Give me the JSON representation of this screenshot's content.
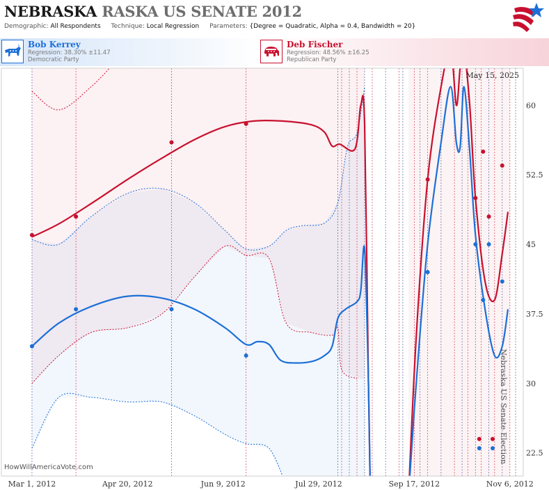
{
  "title": {
    "part1": "NEBRASKA",
    "part2": "RASKA US SENATE 2012"
  },
  "meta": {
    "demographic_label": "Demographic:",
    "demographic_value": "All Respondents",
    "technique_label": "Technique:",
    "technique_value": "Local Regression",
    "parameters_label": "Parameters:",
    "parameters_value": "{Degree = Quadratic, Alpha = 0.4, Bandwidth = 20}"
  },
  "legend": {
    "dem": {
      "name": "Bob Kerrey",
      "regression": "Regression: 38.30% ±11.47",
      "party": "Democratic Party",
      "color": "#1c6fd6",
      "icon": "donkey-icon"
    },
    "rep": {
      "name": "Deb Fischer",
      "regression": "Regression: 48.56% ±16.25",
      "party": "Republican Party",
      "color": "#c8102e",
      "icon": "elephant-icon"
    }
  },
  "date_label": "May 15, 2025",
  "side_label": "Nebraska US Senate Election",
  "credit": "HowWillAmericaVote.com",
  "chart_data": {
    "type": "line",
    "x_tick_labels": [
      "Mar 1, 2012",
      "Apr 20, 2012",
      "Jun 9, 2012",
      "Jul 29, 2012",
      "Sep 17, 2012",
      "Nov 6, 2012"
    ],
    "x_ticks": [
      "2012-03-01",
      "2012-04-20",
      "2012-06-09",
      "2012-07-29",
      "2012-09-17",
      "2012-11-06"
    ],
    "y_ticks": [
      22.5,
      30,
      37.5,
      45,
      52.5,
      60
    ],
    "y_tick_labels": [
      "22.5",
      "30",
      "37.5",
      "45",
      "52.5",
      "60"
    ],
    "ylim": [
      20,
      64
    ],
    "xlim": [
      "2012-02-14",
      "2012-11-13"
    ],
    "poll_dates": [
      "2012-03-01",
      "2012-03-24",
      "2012-05-13",
      "2012-06-21",
      "2012-08-08",
      "2012-08-10",
      "2012-08-14",
      "2012-08-18",
      "2012-08-22",
      "2012-08-26",
      "2012-09-02",
      "2012-09-09",
      "2012-09-11",
      "2012-09-17",
      "2012-09-20",
      "2012-09-24",
      "2012-10-01",
      "2012-10-08",
      "2012-10-12",
      "2012-10-15",
      "2012-10-19",
      "2012-10-22",
      "2012-10-26",
      "2012-10-29",
      "2012-11-02",
      "2012-11-06",
      "2012-11-09"
    ],
    "series": [
      {
        "name": "Bob Kerrey",
        "color": "#1c6fd6",
        "points": [
          {
            "x": "2012-03-01",
            "y": 34
          },
          {
            "x": "2012-03-24",
            "y": 38
          },
          {
            "x": "2012-05-13",
            "y": 38
          },
          {
            "x": "2012-06-21",
            "y": 33
          },
          {
            "x": "2012-09-24",
            "y": 42
          },
          {
            "x": "2012-10-19",
            "y": 45
          },
          {
            "x": "2012-10-23",
            "y": 39
          },
          {
            "x": "2012-10-26",
            "y": 45
          },
          {
            "x": "2012-11-02",
            "y": 41
          },
          {
            "x": "2012-10-21",
            "y": 23
          },
          {
            "x": "2012-10-28",
            "y": 23
          }
        ],
        "fit": [
          {
            "x": "2012-03-01",
            "y": 34
          },
          {
            "x": "2012-03-15",
            "y": 36.5
          },
          {
            "x": "2012-04-01",
            "y": 38.3
          },
          {
            "x": "2012-04-20",
            "y": 39.4
          },
          {
            "x": "2012-05-08",
            "y": 39.2
          },
          {
            "x": "2012-05-25",
            "y": 38
          },
          {
            "x": "2012-06-10",
            "y": 36
          },
          {
            "x": "2012-06-21",
            "y": 34.2
          },
          {
            "x": "2012-06-27",
            "y": 34.5
          },
          {
            "x": "2012-07-03",
            "y": 34.2
          },
          {
            "x": "2012-07-09",
            "y": 32.5
          },
          {
            "x": "2012-07-17",
            "y": 32.2
          },
          {
            "x": "2012-07-26",
            "y": 32.4
          },
          {
            "x": "2012-08-01",
            "y": 33
          },
          {
            "x": "2012-08-05",
            "y": 34
          },
          {
            "x": "2012-08-08",
            "y": 37
          },
          {
            "x": "2012-08-12",
            "y": 38
          },
          {
            "x": "2012-08-18",
            "y": 38.8
          },
          {
            "x": "2012-08-20",
            "y": 40
          },
          {
            "x": "2012-08-22",
            "y": 44.5
          },
          {
            "x": "2012-08-24",
            "y": 30
          },
          {
            "x": "2012-08-25",
            "y": 18
          }
        ],
        "fit2": [
          {
            "x": "2012-09-14",
            "y": 18
          },
          {
            "x": "2012-09-18",
            "y": 30
          },
          {
            "x": "2012-09-24",
            "y": 45
          },
          {
            "x": "2012-10-01",
            "y": 56
          },
          {
            "x": "2012-10-06",
            "y": 62
          },
          {
            "x": "2012-10-09",
            "y": 56
          },
          {
            "x": "2012-10-11",
            "y": 55.5
          },
          {
            "x": "2012-10-13",
            "y": 62
          },
          {
            "x": "2012-10-16",
            "y": 55
          },
          {
            "x": "2012-10-19",
            "y": 46
          },
          {
            "x": "2012-10-24",
            "y": 38
          },
          {
            "x": "2012-10-29",
            "y": 33
          },
          {
            "x": "2012-11-02",
            "y": 34
          },
          {
            "x": "2012-11-05",
            "y": 38
          }
        ]
      },
      {
        "name": "Deb Fischer",
        "color": "#c8102e",
        "points": [
          {
            "x": "2012-03-01",
            "y": 46
          },
          {
            "x": "2012-03-24",
            "y": 48
          },
          {
            "x": "2012-05-13",
            "y": 56
          },
          {
            "x": "2012-06-21",
            "y": 58
          },
          {
            "x": "2012-09-24",
            "y": 52
          },
          {
            "x": "2012-10-19",
            "y": 50
          },
          {
            "x": "2012-10-23",
            "y": 55
          },
          {
            "x": "2012-10-26",
            "y": 48
          },
          {
            "x": "2012-11-02",
            "y": 53.5
          },
          {
            "x": "2012-10-21",
            "y": 24
          },
          {
            "x": "2012-10-28",
            "y": 24
          }
        ],
        "fit": [
          {
            "x": "2012-03-01",
            "y": 45.8
          },
          {
            "x": "2012-03-15",
            "y": 47.2
          },
          {
            "x": "2012-04-01",
            "y": 49.4
          },
          {
            "x": "2012-04-20",
            "y": 52
          },
          {
            "x": "2012-05-08",
            "y": 54.3
          },
          {
            "x": "2012-05-25",
            "y": 56.3
          },
          {
            "x": "2012-06-10",
            "y": 57.7
          },
          {
            "x": "2012-06-25",
            "y": 58.3
          },
          {
            "x": "2012-07-10",
            "y": 58.3
          },
          {
            "x": "2012-07-25",
            "y": 57.9
          },
          {
            "x": "2012-08-01",
            "y": 57.1
          },
          {
            "x": "2012-08-05",
            "y": 55.6
          },
          {
            "x": "2012-08-09",
            "y": 55.8
          },
          {
            "x": "2012-08-17",
            "y": 55.3
          },
          {
            "x": "2012-08-20",
            "y": 60
          },
          {
            "x": "2012-08-22",
            "y": 58
          },
          {
            "x": "2012-08-24",
            "y": 30
          },
          {
            "x": "2012-08-25",
            "y": 18
          }
        ],
        "fit2": [
          {
            "x": "2012-09-14",
            "y": 18
          },
          {
            "x": "2012-09-18",
            "y": 35
          },
          {
            "x": "2012-09-24",
            "y": 52
          },
          {
            "x": "2012-10-01",
            "y": 62
          },
          {
            "x": "2012-10-06",
            "y": 66
          },
          {
            "x": "2012-10-09",
            "y": 60
          },
          {
            "x": "2012-10-11",
            "y": 64
          },
          {
            "x": "2012-10-13",
            "y": 66
          },
          {
            "x": "2012-10-16",
            "y": 60
          },
          {
            "x": "2012-10-19",
            "y": 50
          },
          {
            "x": "2012-10-24",
            "y": 41
          },
          {
            "x": "2012-10-29",
            "y": 39
          },
          {
            "x": "2012-11-02",
            "y": 44
          },
          {
            "x": "2012-11-05",
            "y": 48.5
          }
        ]
      }
    ],
    "bands": {
      "Bob Kerrey": {
        "upper": [
          [
            "2012-03-01",
            45.5
          ],
          [
            "2012-03-15",
            45
          ],
          [
            "2012-04-01",
            48
          ],
          [
            "2012-04-20",
            50.5
          ],
          [
            "2012-05-08",
            51
          ],
          [
            "2012-05-25",
            49.5
          ],
          [
            "2012-06-10",
            46.5
          ],
          [
            "2012-06-21",
            44.5
          ],
          [
            "2012-07-03",
            44.8
          ],
          [
            "2012-07-12",
            46.5
          ],
          [
            "2012-07-20",
            47
          ],
          [
            "2012-08-01",
            47.3
          ],
          [
            "2012-08-08",
            49.5
          ],
          [
            "2012-08-13",
            55.5
          ],
          [
            "2012-08-18",
            57
          ],
          [
            "2012-08-22",
            62
          ]
        ],
        "lower": [
          [
            "2012-03-01",
            23
          ],
          [
            "2012-03-15",
            28.5
          ],
          [
            "2012-04-01",
            28.5
          ],
          [
            "2012-04-20",
            28
          ],
          [
            "2012-05-08",
            28
          ],
          [
            "2012-05-25",
            26.5
          ],
          [
            "2012-06-10",
            24.5
          ],
          [
            "2012-06-21",
            23.5
          ],
          [
            "2012-07-03",
            23
          ],
          [
            "2012-07-12",
            19
          ]
        ]
      },
      "Deb Fischer": {
        "upper": [
          [
            "2012-03-01",
            61.5
          ],
          [
            "2012-03-15",
            59.5
          ],
          [
            "2012-04-01",
            62
          ],
          [
            "2012-04-15",
            65
          ]
        ],
        "lower": [
          [
            "2012-03-01",
            30
          ],
          [
            "2012-03-15",
            33
          ],
          [
            "2012-04-01",
            35.5
          ],
          [
            "2012-04-20",
            36
          ],
          [
            "2012-05-08",
            37.5
          ],
          [
            "2012-05-25",
            41.5
          ],
          [
            "2012-06-10",
            44.8
          ],
          [
            "2012-06-21",
            43.8
          ],
          [
            "2012-07-03",
            43.5
          ],
          [
            "2012-07-12",
            36.5
          ],
          [
            "2012-07-25",
            35.5
          ],
          [
            "2012-08-05",
            35.2
          ],
          [
            "2012-08-08",
            36
          ],
          [
            "2012-08-10",
            31.5
          ],
          [
            "2012-08-18",
            30.5
          ]
        ]
      }
    }
  }
}
